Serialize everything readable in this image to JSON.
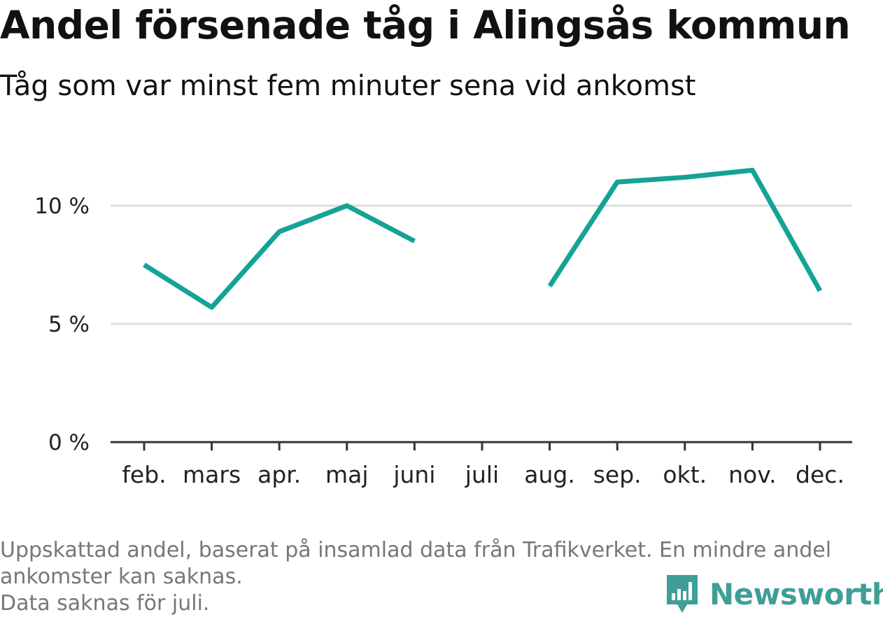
{
  "header": {
    "title": "Andel försenade tåg i Alingsås kommun",
    "subtitle": "Tåg som var minst fem minuter sena vid ankomst"
  },
  "footer": {
    "note_line1": "Uppskattad andel, baserat på insamlad data från Trafikverket. En mindre andel",
    "note_line2": "ankomster kan saknas.",
    "note_line3": "Data saknas för juli.",
    "brand": "Newsworthy",
    "brand_icon": "bar-chart-speech-bubble-icon"
  },
  "colors": {
    "line": "#14a396",
    "grid": "#dddddd",
    "axis": "#333333",
    "brand": "#3f9e97"
  },
  "chart_data": {
    "type": "line",
    "categories": [
      "feb.",
      "mars",
      "apr.",
      "maj",
      "juni",
      "juli",
      "aug.",
      "sep.",
      "okt.",
      "nov.",
      "dec."
    ],
    "series": [
      {
        "values": [
          7.5,
          5.7,
          8.9,
          10.0,
          8.5,
          null,
          6.6,
          11.0,
          11.2,
          11.5,
          6.4
        ]
      }
    ],
    "ylim": [
      0,
      12.5
    ],
    "yticks": [
      0,
      5,
      10
    ],
    "ytick_labels": [
      "0 %",
      "5 %",
      "10 %"
    ],
    "grid": true
  }
}
